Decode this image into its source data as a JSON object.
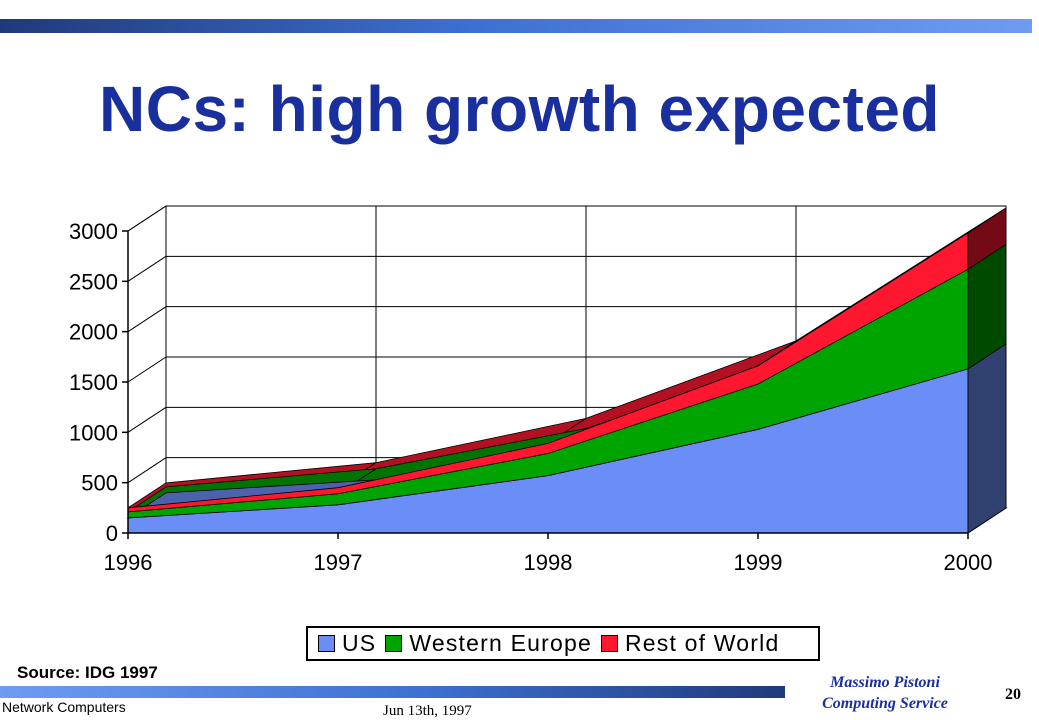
{
  "slide": {
    "title": "NCs: high growth expected",
    "source": "Source: IDG 1997",
    "footer_left": "Network Computers",
    "footer_date": "Jun 13th, 1997",
    "author_name": "Massimo Pistoni",
    "author_dept": "Computing Service",
    "page_number": "20"
  },
  "colors": {
    "accent_title": "#1a2f9e",
    "us": "#6b8ef6",
    "western_europe": "#00a400",
    "rest_of_world": "#ff1730"
  },
  "chart_data": {
    "type": "area",
    "stacked": true,
    "three_d": true,
    "x": [
      "1996",
      "1997",
      "1998",
      "1999",
      "2000"
    ],
    "ylim": [
      0,
      3000
    ],
    "yticks": [
      0,
      500,
      1000,
      1500,
      2000,
      2500,
      3000
    ],
    "grid": true,
    "legend_position": "bottom",
    "series": [
      {
        "name": "US",
        "values": [
          150,
          280,
          570,
          1030,
          1630
        ],
        "color": "#6b8ef6"
      },
      {
        "name": "Western Europe",
        "values": [
          60,
          110,
          220,
          450,
          990
        ],
        "color": "#00a400"
      },
      {
        "name": "Rest of World",
        "values": [
          40,
          60,
          100,
          180,
          360
        ],
        "color": "#ff1730"
      }
    ]
  }
}
